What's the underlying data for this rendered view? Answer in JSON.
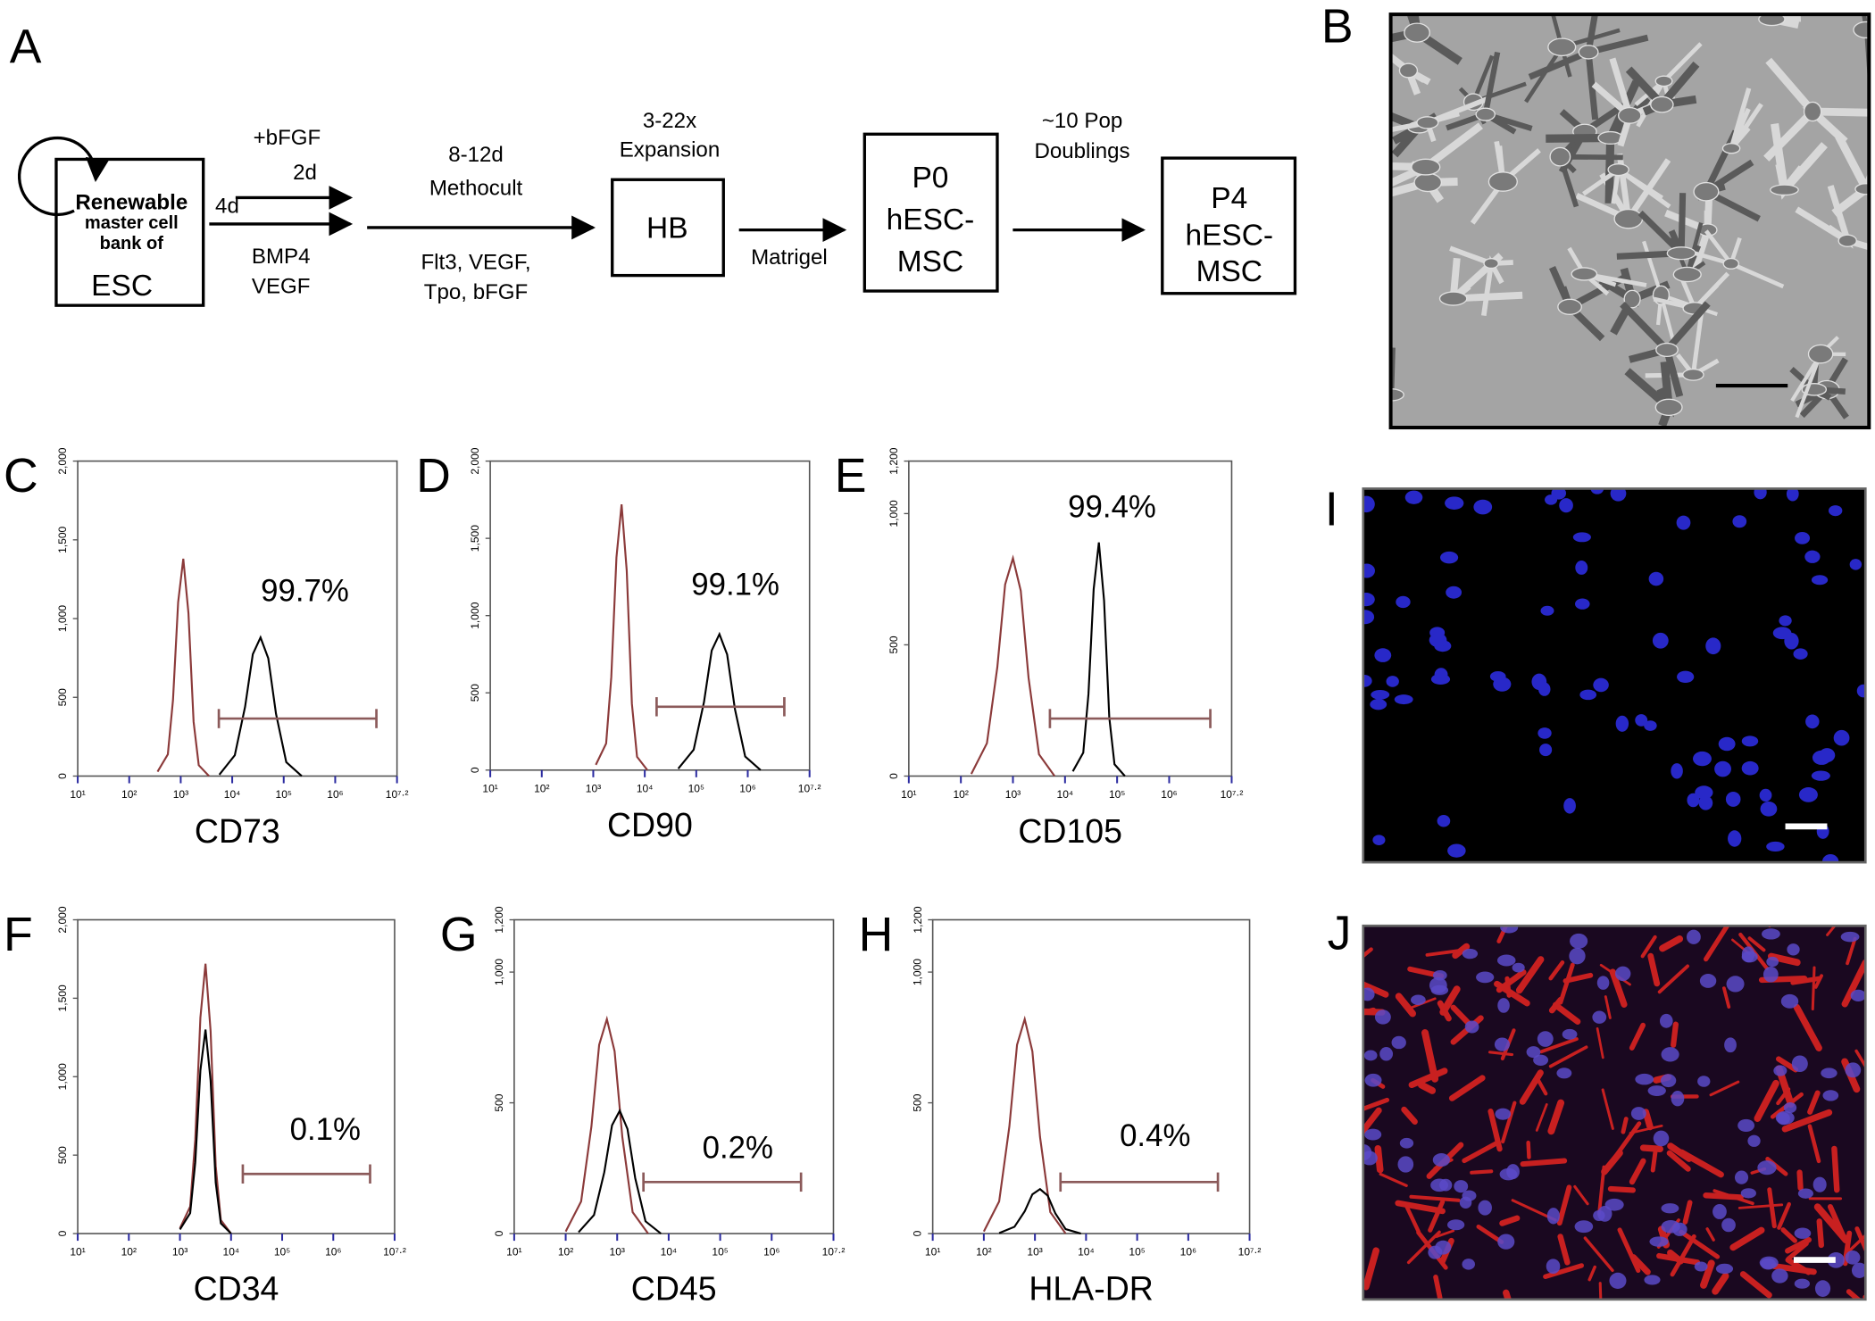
{
  "panel_labels": {
    "A": "A",
    "B": "B",
    "I": "I",
    "J": "J"
  },
  "diagram": {
    "esc_box": {
      "lines": [
        "Renewable",
        "master cell",
        "bank of"
      ],
      "name": "ESC"
    },
    "step1": {
      "time": "4d",
      "above": [
        "+bFGF",
        "2d"
      ],
      "below": [
        "BMP4",
        "VEGF"
      ]
    },
    "step2": {
      "above": [
        "8-12d",
        "Methocult"
      ],
      "below": [
        "Flt3, VEGF,",
        "Tpo, bFGF"
      ]
    },
    "hb_box": {
      "above": [
        "3-22x",
        "Expansion"
      ],
      "name": "HB"
    },
    "step3": {
      "below": "Matrigel"
    },
    "p0_box": [
      "P0",
      "hESC-",
      "MSC"
    ],
    "step4": {
      "above": [
        "~10 Pop",
        "Doublings"
      ]
    },
    "p4_box": [
      "P4",
      "hESC-",
      "MSC"
    ]
  },
  "chart_data": [
    {
      "type": "line",
      "panel": "C",
      "x_label": "CD73",
      "annotation": "99.7%",
      "xlim": [
        1,
        7.2
      ],
      "ylim": [
        0,
        2000
      ],
      "xticks": [
        {
          "value": 1,
          "label": "10¹"
        },
        {
          "value": 2,
          "label": "10²"
        },
        {
          "value": 3,
          "label": "10³"
        },
        {
          "value": 4,
          "label": "10⁴"
        },
        {
          "value": 5,
          "label": "10⁵"
        },
        {
          "value": 6,
          "label": "10⁶"
        },
        {
          "value": 7.2,
          "label": "10⁷·²"
        }
      ],
      "yticks": [
        0,
        500,
        {
          "value": 1000,
          "label": "1,000"
        },
        {
          "value": 1500,
          "label": "1,500"
        },
        {
          "value": 2000,
          "label": "2,000"
        }
      ],
      "gate": {
        "x": [
          3.74,
          6.8
        ],
        "y": 365
      },
      "series": [
        {
          "color": "#8b3a3a",
          "x": [
            2.55,
            2.75,
            2.85,
            2.95,
            3.05,
            3.15,
            3.25,
            3.35,
            3.55
          ],
          "values": [
            28,
            138,
            483,
            1104,
            1380,
            1035,
            345,
            69,
            0
          ]
        },
        {
          "color": "#000000",
          "x": [
            3.75,
            4.05,
            4.25,
            4.4,
            4.55,
            4.7,
            4.85,
            5.05,
            5.35
          ],
          "values": [
            9,
            132,
            440,
            774,
            880,
            748,
            396,
            88,
            0
          ]
        }
      ]
    },
    {
      "type": "line",
      "panel": "D",
      "x_label": "CD90",
      "annotation": "99.1%",
      "xlim": [
        1,
        7.2
      ],
      "ylim": [
        0,
        2000
      ],
      "xticks": [
        {
          "value": 1,
          "label": "10¹"
        },
        {
          "value": 2,
          "label": "10²"
        },
        {
          "value": 3,
          "label": "10³"
        },
        {
          "value": 4,
          "label": "10⁴"
        },
        {
          "value": 5,
          "label": "10⁵"
        },
        {
          "value": 6,
          "label": "10⁶"
        },
        {
          "value": 7.2,
          "label": "10⁷·²"
        }
      ],
      "yticks": [
        0,
        500,
        {
          "value": 1000,
          "label": "1,000"
        },
        {
          "value": 1500,
          "label": "1,500"
        },
        {
          "value": 2000,
          "label": "2,000"
        }
      ],
      "gate": {
        "x": [
          4.23,
          6.71
        ],
        "y": 410
      },
      "series": [
        {
          "color": "#8b3a3a",
          "x": [
            3.05,
            3.25,
            3.35,
            3.45,
            3.55,
            3.65,
            3.75,
            3.85,
            4.05
          ],
          "values": [
            34,
            172,
            602,
            1376,
            1720,
            1290,
            430,
            86,
            0
          ]
        },
        {
          "color": "#000000",
          "x": [
            4.65,
            4.95,
            5.15,
            5.3,
            5.45,
            5.6,
            5.75,
            5.95,
            6.25
          ],
          "values": [
            9,
            132,
            440,
            774,
            880,
            748,
            396,
            88,
            0
          ]
        }
      ]
    },
    {
      "type": "line",
      "panel": "E",
      "x_label": "CD105",
      "annotation": "99.4%",
      "xlim": [
        1,
        7.2
      ],
      "ylim": [
        0,
        1200
      ],
      "xticks": [
        {
          "value": 1,
          "label": "10¹"
        },
        {
          "value": 2,
          "label": "10²"
        },
        {
          "value": 3,
          "label": "10³"
        },
        {
          "value": 4,
          "label": "10⁴"
        },
        {
          "value": 5,
          "label": "10⁵"
        },
        {
          "value": 6,
          "label": "10⁶"
        },
        {
          "value": 7.2,
          "label": "10⁷·²"
        }
      ],
      "yticks": [
        0,
        500,
        {
          "value": 1000,
          "label": "1,000"
        },
        {
          "value": 1200,
          "label": "1,200"
        }
      ],
      "gate": {
        "x": [
          3.71,
          6.79
        ],
        "y": 219
      },
      "series": [
        {
          "color": "#8b3a3a",
          "x": [
            2.2,
            2.5,
            2.7,
            2.85,
            3.0,
            3.15,
            3.3,
            3.5,
            3.8
          ],
          "values": [
            8,
            125,
            415,
            730,
            830,
            706,
            374,
            83,
            0
          ]
        },
        {
          "color": "#000000",
          "x": [
            4.15,
            4.35,
            4.45,
            4.55,
            4.65,
            4.75,
            4.85,
            4.95,
            5.15
          ],
          "values": [
            18,
            89,
            312,
            712,
            890,
            668,
            223,
            45,
            0
          ]
        }
      ]
    },
    {
      "type": "line",
      "panel": "F",
      "x_label": "CD34",
      "annotation": "0.1%",
      "xlim": [
        1,
        7.2
      ],
      "ylim": [
        0,
        2000
      ],
      "xticks": [
        {
          "value": 1,
          "label": "10¹"
        },
        {
          "value": 2,
          "label": "10²"
        },
        {
          "value": 3,
          "label": "10³"
        },
        {
          "value": 4,
          "label": "10⁴"
        },
        {
          "value": 5,
          "label": "10⁵"
        },
        {
          "value": 6,
          "label": "10⁶"
        },
        {
          "value": 7.2,
          "label": "10⁷·²"
        }
      ],
      "yticks": [
        0,
        500,
        {
          "value": 1000,
          "label": "1,000"
        },
        {
          "value": 1500,
          "label": "1,500"
        },
        {
          "value": 2000,
          "label": "2,000"
        }
      ],
      "gate": {
        "x": [
          4.23,
          6.72
        ],
        "y": 380
      },
      "series": [
        {
          "color": "#8b3a3a",
          "x": [
            3.0,
            3.2,
            3.3,
            3.4,
            3.5,
            3.6,
            3.7,
            3.8,
            4.0
          ],
          "values": [
            34,
            172,
            602,
            1376,
            1720,
            1290,
            430,
            86,
            0
          ]
        },
        {
          "color": "#000000",
          "x": [
            3.0,
            3.2,
            3.3,
            3.4,
            3.5,
            3.6,
            3.7,
            3.8,
            4.0
          ],
          "values": [
            26,
            130,
            455,
            1040,
            1300,
            975,
            325,
            65,
            0
          ]
        }
      ]
    },
    {
      "type": "line",
      "panel": "G",
      "x_label": "CD45",
      "annotation": "0.2%",
      "xlim": [
        1,
        7.2
      ],
      "ylim": [
        0,
        1200
      ],
      "xticks": [
        {
          "value": 1,
          "label": "10¹"
        },
        {
          "value": 2,
          "label": "10²"
        },
        {
          "value": 3,
          "label": "10³"
        },
        {
          "value": 4,
          "label": "10⁴"
        },
        {
          "value": 5,
          "label": "10⁵"
        },
        {
          "value": 6,
          "label": "10⁶"
        },
        {
          "value": 7.2,
          "label": "10⁷·²"
        }
      ],
      "yticks": [
        0,
        500,
        {
          "value": 1000,
          "label": "1,000"
        },
        {
          "value": 1200,
          "label": "1,200"
        }
      ],
      "gate": {
        "x": [
          3.51,
          6.57
        ],
        "y": 197
      },
      "series": [
        {
          "color": "#8b3a3a",
          "x": [
            2.0,
            2.3,
            2.5,
            2.65,
            2.8,
            2.95,
            3.1,
            3.3,
            3.6
          ],
          "values": [
            8,
            123,
            410,
            722,
            820,
            697,
            369,
            82,
            0
          ]
        },
        {
          "color": "#000000",
          "x": [
            2.25,
            2.55,
            2.75,
            2.9,
            3.05,
            3.2,
            3.35,
            3.55,
            3.85
          ],
          "values": [
            5,
            71,
            235,
            414,
            470,
            400,
            212,
            47,
            0
          ]
        }
      ]
    },
    {
      "type": "line",
      "panel": "H",
      "x_label": "HLA-DR",
      "annotation": "0.4%",
      "xlim": [
        1,
        7.2
      ],
      "ylim": [
        0,
        1200
      ],
      "xticks": [
        {
          "value": 1,
          "label": "10¹"
        },
        {
          "value": 2,
          "label": "10²"
        },
        {
          "value": 3,
          "label": "10³"
        },
        {
          "value": 4,
          "label": "10⁴"
        },
        {
          "value": 5,
          "label": "10⁵"
        },
        {
          "value": 6,
          "label": "10⁶"
        },
        {
          "value": 7.2,
          "label": "10⁷·²"
        }
      ],
      "yticks": [
        0,
        500,
        {
          "value": 1000,
          "label": "1,000"
        },
        {
          "value": 1200,
          "label": "1,200"
        }
      ],
      "gate": {
        "x": [
          3.5,
          6.58
        ],
        "y": 197
      },
      "series": [
        {
          "color": "#8b3a3a",
          "x": [
            2.0,
            2.3,
            2.5,
            2.65,
            2.8,
            2.95,
            3.1,
            3.3,
            3.6
          ],
          "values": [
            8,
            123,
            410,
            722,
            820,
            697,
            369,
            82,
            0
          ]
        },
        {
          "color": "#000000",
          "x": [
            2.3,
            2.6,
            2.8,
            2.95,
            3.1,
            3.25,
            3.4,
            3.6,
            3.9
          ],
          "values": [
            2,
            26,
            85,
            150,
            170,
            145,
            77,
            17,
            0
          ]
        }
      ]
    }
  ]
}
